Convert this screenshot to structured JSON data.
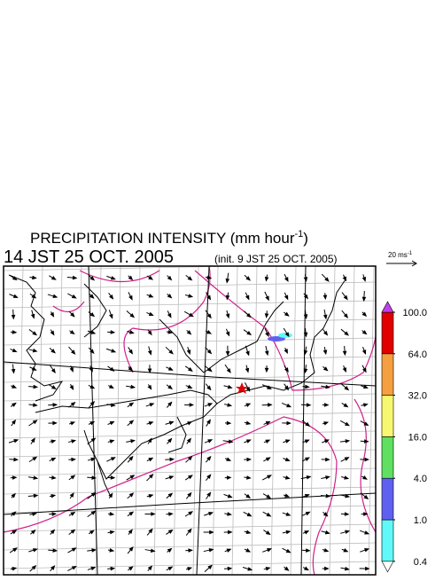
{
  "header": {
    "title": "PRECIPITATION INTENSITY (mm hour",
    "title_sup": "-1",
    "title_end": ")",
    "valid_time": "14 JST 25 OCT. 2005",
    "init": "(init. 9 JST 25 OCT. 2005)"
  },
  "vector_legend": {
    "label": "20 ms",
    "label_sup": "-1"
  },
  "colorbar": {
    "levels": [
      {
        "value": 0.4,
        "label": "0.4"
      },
      {
        "value": 1,
        "label": "1.0"
      },
      {
        "value": 4,
        "label": "4.0"
      },
      {
        "value": 16,
        "label": "16.0"
      },
      {
        "value": 32,
        "label": "32.0"
      },
      {
        "value": 64,
        "label": "64.0"
      },
      {
        "value": 100,
        "label": "100.0"
      }
    ],
    "colors": [
      "#60f8f8",
      "#6060f0",
      "#60e060",
      "#f8f870",
      "#f4a040",
      "#e00000"
    ],
    "over_color": "#c040f0",
    "under_color": "#ffffff"
  }
}
